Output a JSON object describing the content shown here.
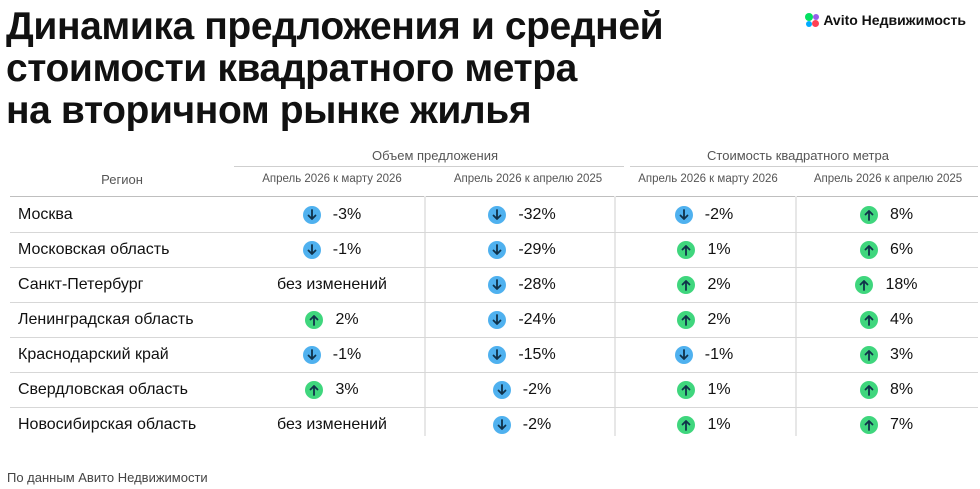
{
  "header": {
    "title_lines": [
      "Динамика предложения и средней",
      "стоимости квадратного метра",
      "на вторичном рынке жилья"
    ],
    "logo": "Avito Недвижимость"
  },
  "table": {
    "group_headers": [
      "Объем предложения",
      "Стоимость квадратного метра"
    ],
    "columns": [
      "Регион",
      "Апрель 2026 к марту 2026",
      "Апрель 2026 к апрелю 2025",
      "Апрель 2026 к марту 2026",
      "Апрель 2026 к апрелю 2025"
    ],
    "rows": [
      {
        "region": "Москва",
        "cells": [
          {
            "dir": "down",
            "text": "-3%"
          },
          {
            "dir": "down",
            "text": "-32%"
          },
          {
            "dir": "down",
            "text": "-2%"
          },
          {
            "dir": "up",
            "text": "8%"
          }
        ]
      },
      {
        "region": "Московская область",
        "cells": [
          {
            "dir": "down",
            "text": "-1%"
          },
          {
            "dir": "down",
            "text": "-29%"
          },
          {
            "dir": "up",
            "text": "1%"
          },
          {
            "dir": "up",
            "text": "6%"
          }
        ]
      },
      {
        "region": "Санкт-Петербург",
        "cells": [
          {
            "dir": "none",
            "text": "без изменений"
          },
          {
            "dir": "down",
            "text": "-28%"
          },
          {
            "dir": "up",
            "text": "2%"
          },
          {
            "dir": "up",
            "text": "18%"
          }
        ]
      },
      {
        "region": "Ленинградская область",
        "cells": [
          {
            "dir": "up",
            "text": "2%"
          },
          {
            "dir": "down",
            "text": "-24%"
          },
          {
            "dir": "up",
            "text": "2%"
          },
          {
            "dir": "up",
            "text": "4%"
          }
        ]
      },
      {
        "region": "Краснодарский край",
        "cells": [
          {
            "dir": "down",
            "text": "-1%"
          },
          {
            "dir": "down",
            "text": "-15%"
          },
          {
            "dir": "down",
            "text": "-1%"
          },
          {
            "dir": "up",
            "text": "3%"
          }
        ]
      },
      {
        "region": "Свердловская область",
        "cells": [
          {
            "dir": "up",
            "text": "3%"
          },
          {
            "dir": "down",
            "text": "-2%"
          },
          {
            "dir": "up",
            "text": "1%"
          },
          {
            "dir": "up",
            "text": "8%"
          }
        ]
      },
      {
        "region": "Новосибирская область",
        "cells": [
          {
            "dir": "none",
            "text": "без изменений"
          },
          {
            "dir": "down",
            "text": "-2%"
          },
          {
            "dir": "up",
            "text": "1%"
          },
          {
            "dir": "up",
            "text": "7%"
          }
        ]
      }
    ]
  },
  "footer": {
    "source": "По данным Авито Недвижимости"
  },
  "colors": {
    "down": "#4fb1ef",
    "up": "#3fd67d"
  },
  "icons": {
    "down": "arrow-down-icon",
    "up": "arrow-up-icon"
  }
}
